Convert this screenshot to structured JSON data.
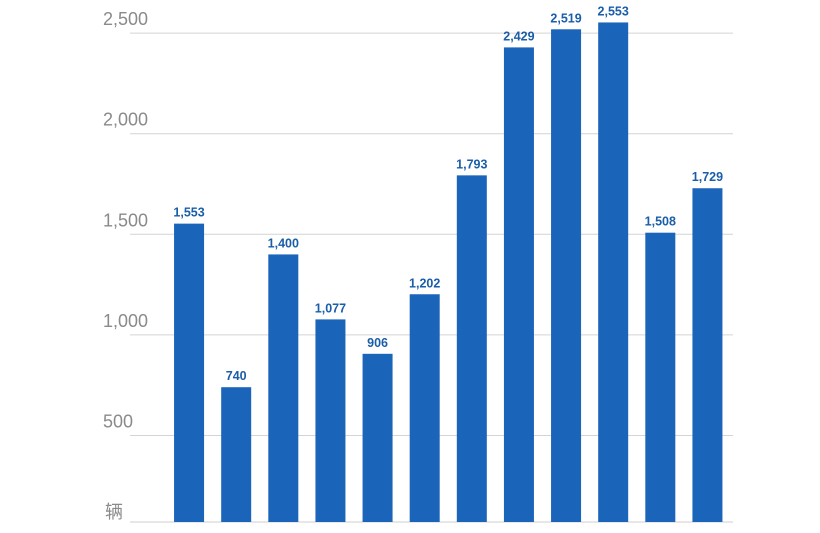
{
  "chart_data": {
    "type": "bar",
    "y_label": "辆",
    "categories": [
      null,
      null,
      null,
      null,
      null,
      null,
      null,
      null,
      null,
      null,
      null,
      null
    ],
    "values": [
      1553,
      740,
      1400,
      1077,
      906,
      1202,
      1793,
      2429,
      2519,
      2553,
      1508,
      1729
    ],
    "value_labels": [
      "1,553",
      "740",
      "1,400",
      "1,077",
      "906",
      "1,202",
      "1,793",
      "2,429",
      "2,519",
      "2,553",
      "1,508",
      "1,729"
    ],
    "color": "#1a64b9",
    "ylim": [
      70,
      2600
    ],
    "yticks": [
      500,
      {
        "value": 1000,
        "label": "1,000"
      },
      {
        "value": 1500,
        "label": "1,500"
      },
      {
        "value": 2000,
        "label": "2,000"
      },
      {
        "value": 2500,
        "label": "2,500"
      }
    ],
    "grid": true
  }
}
